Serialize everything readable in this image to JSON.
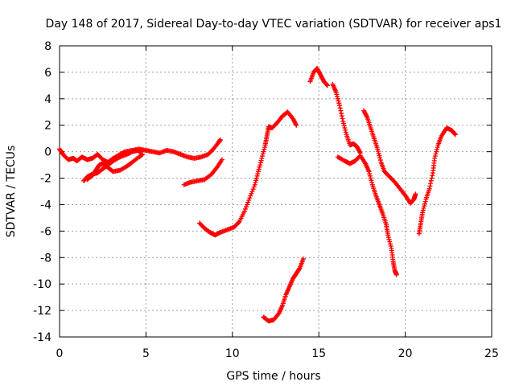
{
  "chart_data": {
    "type": "scatter",
    "title": "Day 148 of 2017, Sidereal Day-to-day VTEC variation (SDTVAR) for receiver aps1",
    "xlabel": "GPS time / hours",
    "ylabel": "SDTVAR / TECUs",
    "xlim": [
      0,
      25
    ],
    "ylim": [
      -14,
      8
    ],
    "xticks": [
      "0",
      "5",
      "10",
      "15",
      "20",
      "25"
    ],
    "yticks": [
      "8",
      "6",
      "4",
      "2",
      "0",
      "-2",
      "-4",
      "-6",
      "-8",
      "-10",
      "-12",
      "-14"
    ],
    "grid": true,
    "marker": "+",
    "color": "#ff0000",
    "series": [
      {
        "points": [
          [
            0.0,
            0.2
          ],
          [
            0.2,
            -0.2
          ],
          [
            0.5,
            -0.6
          ],
          [
            0.8,
            -0.5
          ],
          [
            1.0,
            -0.7
          ],
          [
            1.3,
            -0.4
          ],
          [
            1.6,
            -0.6
          ],
          [
            1.9,
            -0.5
          ],
          [
            2.2,
            -0.2
          ],
          [
            2.5,
            -0.6
          ],
          [
            2.8,
            -0.8
          ],
          [
            3.1,
            -0.5
          ],
          [
            3.5,
            -0.2
          ],
          [
            3.8,
            0.0
          ],
          [
            4.2,
            0.1
          ],
          [
            4.6,
            0.2
          ],
          [
            5.0,
            0.1
          ],
          [
            5.4,
            0.0
          ],
          [
            5.8,
            -0.1
          ],
          [
            6.2,
            0.1
          ],
          [
            6.6,
            0.0
          ],
          [
            7.0,
            -0.2
          ],
          [
            7.4,
            -0.4
          ],
          [
            7.8,
            -0.5
          ],
          [
            8.2,
            -0.4
          ],
          [
            8.6,
            -0.2
          ],
          [
            8.9,
            0.2
          ],
          [
            9.2,
            0.7
          ],
          [
            9.3,
            0.9
          ]
        ]
      },
      {
        "points": [
          [
            1.4,
            -2.2
          ],
          [
            1.6,
            -1.9
          ],
          [
            1.9,
            -1.7
          ],
          [
            2.2,
            -1.6
          ],
          [
            2.5,
            -1.3
          ],
          [
            2.8,
            -1.0
          ],
          [
            3.1,
            -0.7
          ],
          [
            3.5,
            -0.4
          ],
          [
            3.9,
            -0.2
          ],
          [
            4.2,
            0.0
          ],
          [
            4.5,
            0.1
          ],
          [
            4.7,
            0.0
          ]
        ]
      },
      {
        "points": [
          [
            1.6,
            -2.1
          ],
          [
            1.9,
            -1.8
          ],
          [
            2.1,
            -1.4
          ],
          [
            2.3,
            -1.0
          ],
          [
            2.5,
            -0.9
          ],
          [
            2.8,
            -1.2
          ],
          [
            3.1,
            -1.5
          ],
          [
            3.5,
            -1.4
          ],
          [
            3.9,
            -1.1
          ],
          [
            4.2,
            -0.8
          ],
          [
            4.6,
            -0.4
          ],
          [
            4.8,
            -0.2
          ]
        ]
      },
      {
        "points": [
          [
            7.2,
            -2.5
          ],
          [
            7.6,
            -2.3
          ],
          [
            8.0,
            -2.2
          ],
          [
            8.4,
            -2.1
          ],
          [
            8.8,
            -1.7
          ],
          [
            9.1,
            -1.2
          ],
          [
            9.4,
            -0.6
          ]
        ]
      },
      {
        "points": [
          [
            8.1,
            -5.4
          ],
          [
            8.4,
            -5.8
          ],
          [
            8.7,
            -6.1
          ],
          [
            9.0,
            -6.3
          ],
          [
            9.3,
            -6.1
          ],
          [
            9.7,
            -5.9
          ],
          [
            10.1,
            -5.7
          ],
          [
            10.4,
            -5.3
          ],
          [
            10.7,
            -4.5
          ],
          [
            11.0,
            -3.5
          ],
          [
            11.3,
            -2.5
          ],
          [
            11.5,
            -1.5
          ],
          [
            11.7,
            -0.5
          ],
          [
            11.9,
            0.5
          ],
          [
            12.0,
            1.2
          ],
          [
            12.1,
            1.9
          ],
          [
            12.3,
            1.8
          ],
          [
            12.6,
            2.2
          ],
          [
            12.9,
            2.7
          ],
          [
            13.2,
            3.0
          ],
          [
            13.5,
            2.5
          ],
          [
            13.7,
            2.0
          ]
        ]
      },
      {
        "points": [
          [
            11.8,
            -12.5
          ],
          [
            12.1,
            -12.8
          ],
          [
            12.4,
            -12.7
          ],
          [
            12.7,
            -12.2
          ],
          [
            12.9,
            -11.6
          ],
          [
            13.1,
            -10.8
          ],
          [
            13.3,
            -10.2
          ],
          [
            13.5,
            -9.6
          ],
          [
            13.7,
            -9.2
          ],
          [
            13.9,
            -8.8
          ],
          [
            14.1,
            -8.1
          ]
        ]
      },
      {
        "points": [
          [
            14.5,
            5.3
          ],
          [
            14.7,
            6.0
          ],
          [
            14.9,
            6.3
          ],
          [
            15.1,
            5.8
          ],
          [
            15.3,
            5.3
          ],
          [
            15.5,
            5.0
          ]
        ]
      },
      {
        "points": [
          [
            15.8,
            5.1
          ],
          [
            16.0,
            4.5
          ],
          [
            16.2,
            3.5
          ],
          [
            16.4,
            2.3
          ],
          [
            16.6,
            1.3
          ],
          [
            16.8,
            0.5
          ],
          [
            17.0,
            0.6
          ],
          [
            17.2,
            0.4
          ],
          [
            17.4,
            -0.1
          ]
        ]
      },
      {
        "points": [
          [
            16.1,
            -0.4
          ],
          [
            16.5,
            -0.7
          ],
          [
            16.8,
            -0.9
          ],
          [
            17.1,
            -0.7
          ],
          [
            17.4,
            -0.3
          ],
          [
            17.7,
            -0.9
          ],
          [
            17.9,
            -1.5
          ],
          [
            18.1,
            -2.5
          ],
          [
            18.3,
            -3.3
          ],
          [
            18.5,
            -4.0
          ],
          [
            18.7,
            -4.7
          ],
          [
            18.9,
            -5.5
          ],
          [
            19.0,
            -6.3
          ],
          [
            19.2,
            -7.3
          ],
          [
            19.3,
            -8.3
          ],
          [
            19.4,
            -9.0
          ],
          [
            19.5,
            -9.3
          ]
        ]
      },
      {
        "points": [
          [
            17.6,
            3.1
          ],
          [
            17.8,
            2.6
          ],
          [
            18.0,
            1.8
          ],
          [
            18.2,
            1.0
          ],
          [
            18.4,
            0.2
          ],
          [
            18.6,
            -0.8
          ],
          [
            18.8,
            -1.5
          ],
          [
            19.1,
            -1.9
          ],
          [
            19.4,
            -2.3
          ],
          [
            19.7,
            -2.8
          ],
          [
            20.0,
            -3.3
          ],
          [
            20.3,
            -3.9
          ],
          [
            20.5,
            -3.6
          ],
          [
            20.6,
            -3.2
          ]
        ]
      },
      {
        "points": [
          [
            20.8,
            -6.2
          ],
          [
            20.9,
            -5.4
          ],
          [
            21.0,
            -4.6
          ],
          [
            21.2,
            -3.6
          ],
          [
            21.4,
            -2.8
          ],
          [
            21.6,
            -1.6
          ],
          [
            21.7,
            -0.5
          ],
          [
            21.9,
            0.5
          ],
          [
            22.1,
            1.2
          ],
          [
            22.4,
            1.8
          ],
          [
            22.7,
            1.6
          ],
          [
            22.9,
            1.3
          ]
        ]
      }
    ]
  }
}
